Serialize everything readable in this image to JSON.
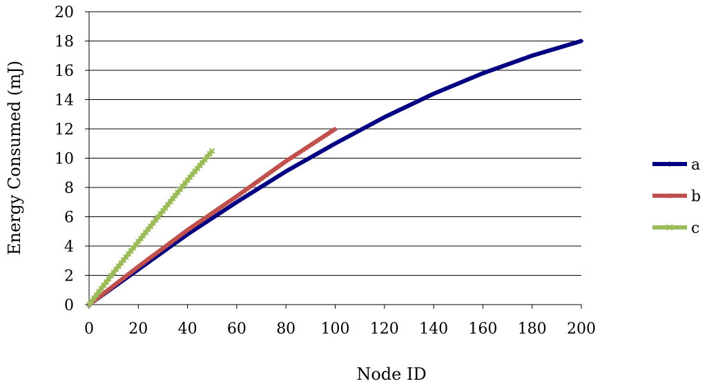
{
  "chart_data": {
    "type": "line",
    "title": "",
    "xlabel": "Node ID",
    "ylabel": "Energy Consumed (mJ)",
    "xlim": [
      0,
      200
    ],
    "ylim": [
      0,
      20
    ],
    "x_ticks": [
      0,
      20,
      40,
      60,
      80,
      100,
      120,
      140,
      160,
      180,
      200
    ],
    "y_ticks": [
      0,
      2,
      4,
      6,
      8,
      10,
      12,
      14,
      16,
      18,
      20
    ],
    "grid": "horizontal",
    "legend": "right",
    "series": [
      {
        "name": "a",
        "color": "#000080",
        "marker": "diamond",
        "points": [
          [
            0,
            0
          ],
          [
            20,
            2.4
          ],
          [
            40,
            4.8
          ],
          [
            60,
            7.0
          ],
          [
            80,
            9.1
          ],
          [
            100,
            11.0
          ],
          [
            120,
            12.8
          ],
          [
            140,
            14.4
          ],
          [
            160,
            15.8
          ],
          [
            180,
            17.0
          ],
          [
            200,
            18.0
          ]
        ]
      },
      {
        "name": "b",
        "color": "#c0504d",
        "marker": "triangle",
        "points": [
          [
            0,
            0
          ],
          [
            20,
            2.6
          ],
          [
            40,
            5.1
          ],
          [
            60,
            7.4
          ],
          [
            80,
            9.8
          ],
          [
            100,
            12.0
          ]
        ]
      },
      {
        "name": "c",
        "color": "#9bbb59",
        "marker": "x",
        "points": [
          [
            0,
            0
          ],
          [
            10,
            2.2
          ],
          [
            20,
            4.3
          ],
          [
            30,
            6.4
          ],
          [
            40,
            8.5
          ],
          [
            50,
            10.5
          ]
        ]
      }
    ]
  }
}
